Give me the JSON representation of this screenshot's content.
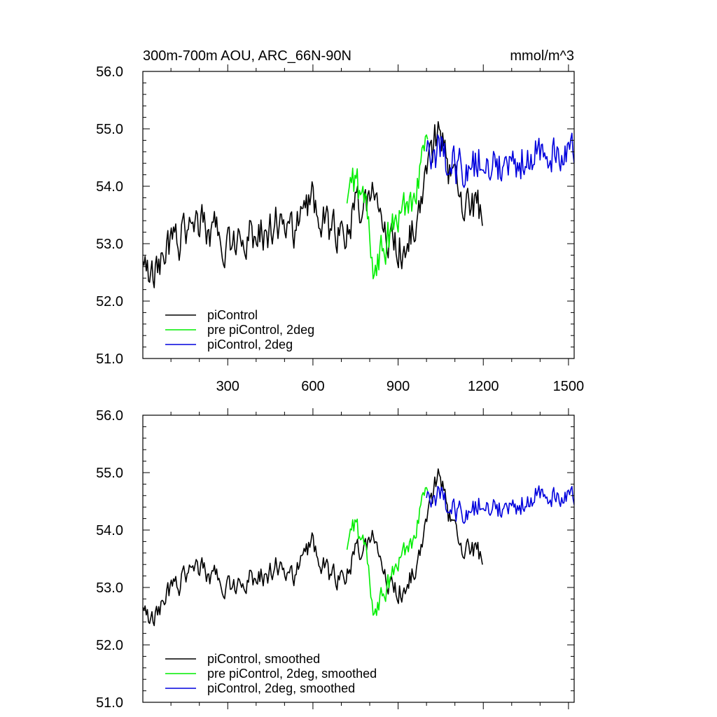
{
  "figure": {
    "title_left": "300m-700m AOU, ARC_66N-90N",
    "title_right": "mmol/m^3"
  },
  "colors": {
    "piControl": "#000000",
    "pre_piControl_2deg": "#00ee00",
    "piControl_2deg": "#0000dd"
  },
  "chart_data": [
    {
      "type": "line",
      "panel": "raw",
      "title": "300m-700m AOU, ARC_66N-90N",
      "units": "mmol/m^3",
      "xlim": [
        1,
        1520
      ],
      "ylim": [
        51.0,
        56.0
      ],
      "x_ticks": [
        300,
        600,
        900,
        1200,
        1500
      ],
      "x_tick_labels": [
        "300",
        "600",
        "900",
        "1200",
        "1500"
      ],
      "y_ticks": [
        51.0,
        52.0,
        53.0,
        54.0,
        55.0,
        56.0
      ],
      "y_tick_labels": [
        "51.0",
        "52.0",
        "53.0",
        "54.0",
        "55.0",
        "56.0"
      ],
      "grid": false,
      "legend_position": "bottom-left",
      "series": [
        {
          "name": "piControl",
          "color": "#000000",
          "x": [
            1,
            30,
            60,
            90,
            120,
            150,
            180,
            210,
            240,
            270,
            300,
            330,
            360,
            390,
            420,
            450,
            480,
            510,
            540,
            570,
            600,
            630,
            660,
            690,
            720,
            750,
            780,
            810,
            840,
            870,
            900,
            930,
            960,
            990,
            1020,
            1040,
            1060,
            1090,
            1120,
            1150,
            1180,
            1200
          ],
          "values": [
            52.6,
            52.4,
            52.6,
            52.9,
            53.0,
            53.2,
            53.4,
            53.3,
            53.2,
            53.1,
            53.1,
            53.0,
            53.1,
            53.2,
            53.2,
            53.3,
            53.4,
            53.1,
            53.2,
            53.6,
            53.8,
            53.4,
            53.2,
            53.1,
            53.3,
            53.6,
            53.7,
            53.9,
            53.4,
            53.0,
            52.9,
            53.1,
            53.3,
            53.8,
            54.5,
            55.0,
            54.7,
            54.0,
            53.6,
            53.7,
            53.6,
            53.5
          ],
          "noise_amplitude": 0.42
        },
        {
          "name": "pre piControl, 2deg",
          "color": "#00ee00",
          "x": [
            720,
            735,
            750,
            765,
            780,
            795,
            810,
            825,
            840,
            855,
            870,
            885,
            900,
            915,
            930,
            945,
            960,
            975,
            990,
            1005
          ],
          "values": [
            53.6,
            53.9,
            54.2,
            53.8,
            53.8,
            53.3,
            52.7,
            52.6,
            52.8,
            52.9,
            53.1,
            53.2,
            53.4,
            53.6,
            53.7,
            53.8,
            54.0,
            54.4,
            54.6,
            54.5
          ],
          "noise_amplitude": 0.42
        },
        {
          "name": "piControl, 2deg",
          "color": "#0000dd",
          "x": [
            1000,
            1050,
            1100,
            1150,
            1200,
            1250,
            1300,
            1350,
            1400,
            1450,
            1500,
            1520
          ],
          "values": [
            54.5,
            54.6,
            54.3,
            54.3,
            54.5,
            54.4,
            54.4,
            54.5,
            54.7,
            54.6,
            54.6,
            54.5
          ],
          "noise_amplitude": 0.42
        }
      ]
    },
    {
      "type": "line",
      "panel": "smoothed",
      "xlim": [
        1,
        1520
      ],
      "ylim": [
        51.0,
        56.0
      ],
      "x_ticks": [
        300,
        600,
        900,
        1200,
        1500
      ],
      "y_ticks": [
        51.0,
        52.0,
        53.0,
        54.0,
        55.0,
        56.0
      ],
      "y_tick_labels": [
        "51.0",
        "52.0",
        "53.0",
        "54.0",
        "55.0",
        "56.0"
      ],
      "grid": false,
      "legend_position": "bottom-left",
      "series": [
        {
          "name": "piControl, smoothed",
          "color": "#000000",
          "x": [
            1,
            30,
            60,
            90,
            120,
            150,
            180,
            210,
            240,
            270,
            300,
            330,
            360,
            390,
            420,
            450,
            480,
            510,
            540,
            570,
            600,
            630,
            660,
            690,
            720,
            750,
            780,
            810,
            840,
            870,
            900,
            930,
            960,
            990,
            1020,
            1040,
            1060,
            1090,
            1120,
            1150,
            1180,
            1200
          ],
          "values": [
            52.6,
            52.4,
            52.6,
            52.9,
            53.0,
            53.2,
            53.4,
            53.3,
            53.2,
            53.1,
            53.1,
            53.0,
            53.1,
            53.2,
            53.2,
            53.3,
            53.4,
            53.1,
            53.2,
            53.6,
            53.8,
            53.4,
            53.2,
            53.1,
            53.3,
            53.6,
            53.7,
            53.9,
            53.4,
            53.0,
            52.9,
            53.1,
            53.3,
            53.8,
            54.5,
            55.0,
            54.7,
            54.0,
            53.6,
            53.7,
            53.6,
            53.5
          ],
          "noise_amplitude": 0.24
        },
        {
          "name": "pre piControl, 2deg, smoothed",
          "color": "#00ee00",
          "x": [
            720,
            735,
            750,
            765,
            780,
            795,
            810,
            825,
            840,
            855,
            870,
            885,
            900,
            915,
            930,
            945,
            960,
            975,
            990,
            1005
          ],
          "values": [
            53.6,
            53.9,
            54.2,
            53.8,
            53.8,
            53.3,
            52.7,
            52.6,
            52.8,
            52.9,
            53.1,
            53.2,
            53.4,
            53.6,
            53.7,
            53.8,
            54.0,
            54.4,
            54.6,
            54.5
          ],
          "noise_amplitude": 0.24
        },
        {
          "name": "piControl, 2deg, smoothed",
          "color": "#0000dd",
          "x": [
            1000,
            1050,
            1100,
            1150,
            1200,
            1250,
            1300,
            1350,
            1400,
            1450,
            1500,
            1520
          ],
          "values": [
            54.5,
            54.6,
            54.3,
            54.3,
            54.5,
            54.4,
            54.4,
            54.5,
            54.7,
            54.6,
            54.6,
            54.5
          ],
          "noise_amplitude": 0.24
        }
      ]
    }
  ]
}
